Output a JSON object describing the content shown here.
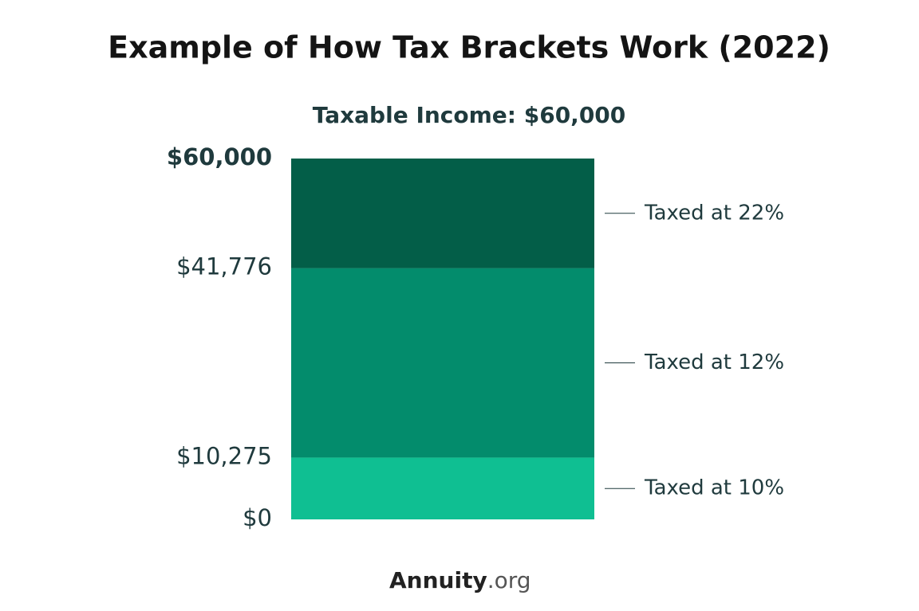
{
  "chart_data": {
    "type": "stacked-bar",
    "title": "Example of How Tax Brackets Work (2022)",
    "subtitle": "Taxable Income: $60,000",
    "categories": [
      null
    ],
    "series": [
      {
        "name": "Taxed at 10%",
        "color": "#0fbf92",
        "values": [
          10275
        ]
      },
      {
        "name": "Taxed at 12%",
        "color": "#038c6c",
        "values": [
          31501
        ]
      },
      {
        "name": "Taxed at 22%",
        "color": "#035e48",
        "values": [
          18224
        ]
      }
    ],
    "ylim": [
      0,
      60000
    ],
    "yticks": [
      {
        "value": 0,
        "label": "$0"
      },
      {
        "value": 10275,
        "label": "$10,275"
      },
      {
        "value": 41776,
        "label": "$41,776"
      },
      {
        "value": 60000,
        "label": "$60,000"
      }
    ]
  },
  "footer": {
    "brand": "Annuity",
    "suffix": ".org"
  }
}
